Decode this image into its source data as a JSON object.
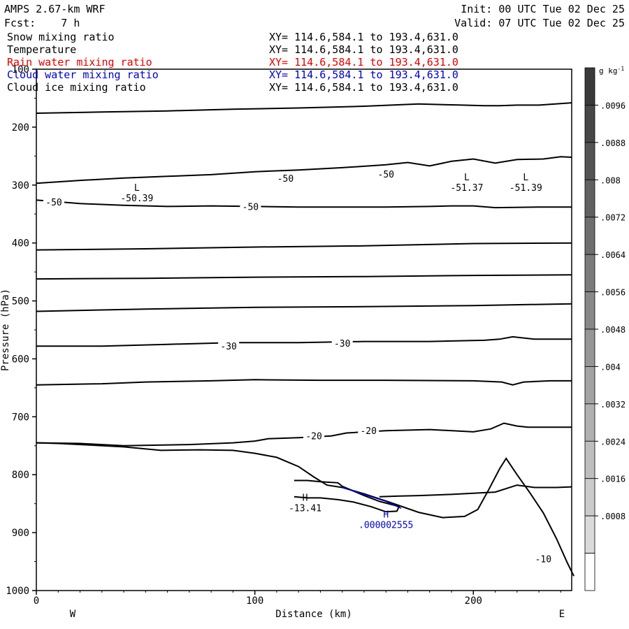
{
  "header": {
    "model": "AMPS 2.67-km WRF",
    "init": "Init: 00 UTC Tue 02 Dec 25",
    "fcst": "Fcst:    7 h",
    "valid": "Valid: 07 UTC Tue 02 Dec 25"
  },
  "variables": [
    {
      "name": "Snow mixing ratio",
      "xy": "XY= 114.6,584.1 to 193.4,631.0",
      "color": "#000000"
    },
    {
      "name": "Temperature",
      "xy": "XY= 114.6,584.1 to 193.4,631.0",
      "color": "#000000"
    },
    {
      "name": "Rain water mixing ratio",
      "xy": "XY= 114.6,584.1 to 193.4,631.0",
      "color": "#e00000"
    },
    {
      "name": "Cloud water mixing ratio",
      "xy": "XY= 114.6,584.1 to 193.4,631.0",
      "color": "#0000c0"
    },
    {
      "name": "Cloud ice mixing ratio",
      "xy": "XY= 114.6,584.1 to 193.4,631.0",
      "color": "#000000"
    }
  ],
  "chart_data": {
    "type": "contour",
    "xlabel": "Distance (km)",
    "ylabel": "Pressure (hPa)",
    "xlim": [
      0,
      245
    ],
    "ylim": [
      1000,
      100
    ],
    "xticks": [
      0,
      100,
      200
    ],
    "yticks": [
      100,
      200,
      300,
      400,
      500,
      600,
      700,
      800,
      900,
      1000
    ],
    "side_labels": {
      "left": "W",
      "right": "E"
    },
    "colorbar": {
      "unit_base": "g kg",
      "unit_exp": "-1",
      "labels": [
        ".0096",
        ".0088",
        ".008",
        ".0072",
        ".0064",
        ".0056",
        ".0048",
        ".004",
        ".0032",
        ".0024",
        ".0016",
        ".0008"
      ],
      "bin_edges": [
        0.0104,
        0.0096,
        0.0088,
        0.008,
        0.0072,
        0.0064,
        0.0056,
        0.0048,
        0.004,
        0.0032,
        0.0024,
        0.0016,
        0.0008,
        0.0
      ],
      "shades": [
        "#3a3a3a",
        "#474747",
        "#545454",
        "#616161",
        "#6e6e6e",
        "#7b7b7b",
        "#888888",
        "#969696",
        "#a3a3a3",
        "#b0b0b0",
        "#bebebe",
        "#cbcbcb",
        "#dadada",
        "#ffffff"
      ]
    },
    "temperature_contours": [
      {
        "points": [
          [
            0,
            176
          ],
          [
            30,
            174
          ],
          [
            60,
            172
          ],
          [
            90,
            169
          ],
          [
            120,
            167
          ],
          [
            150,
            164
          ],
          [
            175,
            160
          ],
          [
            185,
            161
          ],
          [
            195,
            162
          ],
          [
            205,
            163
          ],
          [
            212,
            163
          ],
          [
            220,
            162
          ],
          [
            230,
            162
          ],
          [
            245,
            158
          ]
        ]
      },
      {
        "points": [
          [
            0,
            297
          ],
          [
            20,
            292
          ],
          [
            40,
            288
          ],
          [
            60,
            285
          ],
          [
            80,
            282
          ],
          [
            100,
            277
          ],
          [
            120,
            274
          ],
          [
            140,
            270
          ],
          [
            160,
            265
          ],
          [
            170,
            261
          ],
          [
            180,
            267
          ],
          [
            190,
            259
          ],
          [
            200,
            255
          ],
          [
            210,
            262
          ],
          [
            220,
            256
          ],
          [
            232,
            255
          ],
          [
            240,
            251
          ],
          [
            245,
            252
          ]
        ]
      },
      {
        "points": [
          [
            0,
            326
          ],
          [
            20,
            332
          ],
          [
            40,
            335
          ],
          [
            60,
            337
          ],
          [
            80,
            336
          ],
          [
            100,
            337
          ],
          [
            120,
            338
          ],
          [
            140,
            338
          ],
          [
            160,
            338
          ],
          [
            180,
            337
          ],
          [
            190,
            336
          ],
          [
            200,
            336
          ],
          [
            210,
            339
          ],
          [
            230,
            338
          ],
          [
            245,
            338
          ]
        ]
      },
      {
        "points": [
          [
            0,
            412
          ],
          [
            50,
            410
          ],
          [
            100,
            407
          ],
          [
            150,
            405
          ],
          [
            200,
            401
          ],
          [
            245,
            400
          ]
        ]
      },
      {
        "points": [
          [
            0,
            462
          ],
          [
            50,
            461
          ],
          [
            100,
            459
          ],
          [
            150,
            458
          ],
          [
            200,
            456
          ],
          [
            245,
            455
          ]
        ]
      },
      {
        "points": [
          [
            0,
            518
          ],
          [
            50,
            514
          ],
          [
            100,
            511
          ],
          [
            150,
            510
          ],
          [
            200,
            508
          ],
          [
            245,
            505
          ]
        ]
      },
      {
        "points": [
          [
            0,
            578
          ],
          [
            30,
            578
          ],
          [
            60,
            575
          ],
          [
            90,
            572
          ],
          [
            120,
            572
          ],
          [
            150,
            570
          ],
          [
            180,
            570
          ],
          [
            205,
            568
          ],
          [
            212,
            566
          ],
          [
            218,
            562
          ],
          [
            228,
            566
          ],
          [
            245,
            566
          ]
        ]
      },
      {
        "points": [
          [
            0,
            645
          ],
          [
            30,
            643
          ],
          [
            50,
            640
          ],
          [
            80,
            638
          ],
          [
            100,
            636
          ],
          [
            130,
            637
          ],
          [
            160,
            637
          ],
          [
            200,
            638
          ],
          [
            213,
            640
          ],
          [
            218,
            645
          ],
          [
            223,
            640
          ],
          [
            235,
            638
          ],
          [
            245,
            638
          ]
        ]
      },
      {
        "points": [
          [
            0,
            745
          ],
          [
            20,
            746
          ],
          [
            40,
            750
          ],
          [
            70,
            748
          ],
          [
            90,
            745
          ],
          [
            100,
            742
          ],
          [
            106,
            738
          ],
          [
            120,
            736
          ],
          [
            135,
            733
          ],
          [
            142,
            728
          ],
          [
            160,
            724
          ],
          [
            180,
            722
          ],
          [
            200,
            726
          ],
          [
            208,
            721
          ],
          [
            214,
            711
          ],
          [
            220,
            716
          ],
          [
            225,
            718
          ],
          [
            245,
            718
          ]
        ]
      },
      {
        "points": [
          [
            0,
            745
          ],
          [
            10,
            746
          ],
          [
            25,
            749
          ],
          [
            40,
            752
          ],
          [
            57,
            758
          ],
          [
            75,
            757
          ],
          [
            90,
            758
          ],
          [
            100,
            763
          ],
          [
            110,
            770
          ],
          [
            120,
            786
          ],
          [
            127,
            804
          ],
          [
            133,
            818
          ],
          [
            140,
            822
          ],
          [
            150,
            833
          ],
          [
            162,
            848
          ],
          [
            175,
            865
          ],
          [
            186,
            874
          ],
          [
            196,
            872
          ],
          [
            202,
            860
          ],
          [
            207,
            826
          ],
          [
            212,
            790
          ],
          [
            215,
            772
          ],
          [
            220,
            800
          ],
          [
            226,
            832
          ],
          [
            232,
            866
          ],
          [
            238,
            910
          ],
          [
            243,
            952
          ],
          [
            246,
            975
          ]
        ]
      },
      {
        "points": [
          [
            118,
            810
          ],
          [
            124,
            810
          ],
          [
            130,
            812
          ],
          [
            138,
            814
          ],
          [
            140,
            820
          ],
          [
            150,
            836
          ],
          [
            157,
            846
          ],
          [
            163,
            852
          ],
          [
            166,
            855
          ],
          [
            165,
            863
          ],
          [
            160,
            864
          ],
          [
            153,
            855
          ],
          [
            145,
            847
          ],
          [
            138,
            843
          ],
          [
            130,
            840
          ],
          [
            124,
            840
          ],
          [
            118,
            838
          ]
        ]
      },
      {
        "points": [
          [
            157,
            838
          ],
          [
            165,
            837
          ],
          [
            175,
            836
          ],
          [
            190,
            834
          ],
          [
            200,
            832
          ],
          [
            210,
            830
          ],
          [
            220,
            818
          ],
          [
            228,
            822
          ],
          [
            238,
            822
          ],
          [
            245,
            821
          ]
        ]
      }
    ],
    "labels": [
      {
        "text": "-50",
        "x": 114,
        "y": 288
      },
      {
        "text": "-50",
        "x": 160,
        "y": 281
      },
      {
        "text": "-50",
        "x": 8,
        "y": 329
      },
      {
        "text": "-50",
        "x": 98,
        "y": 337
      },
      {
        "text": "-30",
        "x": 88,
        "y": 578
      },
      {
        "text": "-30",
        "x": 140,
        "y": 573
      },
      {
        "text": "-20",
        "x": 127,
        "y": 733
      },
      {
        "text": "-20",
        "x": 152,
        "y": 724
      },
      {
        "text": "-10",
        "x": 232,
        "y": 945
      }
    ],
    "extrema": [
      {
        "mark": "L",
        "value": "-50.39",
        "x": 46,
        "y": 310,
        "color": "#000000"
      },
      {
        "mark": "L",
        "value": "-51.37",
        "x": 197,
        "y": 292,
        "color": "#000000"
      },
      {
        "mark": "L",
        "value": "-51.39",
        "x": 224,
        "y": 292,
        "color": "#000000"
      },
      {
        "mark": "H",
        "value": "-13.41",
        "x": 123,
        "y": 845,
        "color": "#000000"
      },
      {
        "mark": "H",
        "value": ".000002555",
        "x": 160,
        "y": 874,
        "color": "#0000c0"
      }
    ],
    "cloud_water_contour": {
      "color": "#0000c0",
      "points": [
        [
          140,
          822
        ],
        [
          150,
          834
        ],
        [
          160,
          846
        ],
        [
          167,
          858
        ]
      ]
    }
  }
}
